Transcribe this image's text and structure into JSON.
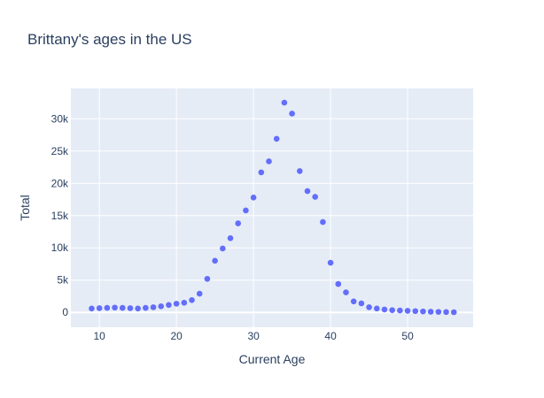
{
  "chart_data": {
    "type": "scatter",
    "title": "Brittany's ages in the US",
    "xlabel": "Current Age",
    "ylabel": "Total",
    "xlim": [
      6.3,
      58.5
    ],
    "ylim": [
      -2300,
      34700
    ],
    "x_ticks": [
      10,
      20,
      30,
      40,
      50
    ],
    "y_ticks": [
      {
        "value": 0,
        "label": "0"
      },
      {
        "value": 5000,
        "label": "5k"
      },
      {
        "value": 10000,
        "label": "10k"
      },
      {
        "value": 15000,
        "label": "15k"
      },
      {
        "value": 20000,
        "label": "20k"
      },
      {
        "value": 25000,
        "label": "25k"
      },
      {
        "value": 30000,
        "label": "30k"
      }
    ],
    "grid": true,
    "colors": {
      "plot_background": "#e5ecf6",
      "grid": "#ffffff",
      "marker": "#636efa",
      "text": "#2a3f5f"
    },
    "x": [
      9,
      10,
      11,
      12,
      13,
      14,
      15,
      16,
      17,
      18,
      19,
      20,
      21,
      22,
      23,
      24,
      25,
      26,
      27,
      28,
      29,
      30,
      31,
      32,
      33,
      34,
      35,
      36,
      37,
      38,
      39,
      40,
      41,
      42,
      43,
      44,
      45,
      46,
      47,
      48,
      49,
      50,
      51,
      52,
      53,
      54,
      55,
      56
    ],
    "y": [
      600,
      650,
      700,
      750,
      700,
      650,
      600,
      700,
      800,
      950,
      1150,
      1350,
      1500,
      1900,
      2900,
      5200,
      8000,
      9900,
      11500,
      13800,
      15800,
      17800,
      21700,
      23400,
      26900,
      32500,
      30800,
      21900,
      18800,
      17900,
      14000,
      7700,
      4400,
      3100,
      1700,
      1400,
      800,
      600,
      450,
      350,
      300,
      250,
      200,
      150,
      100,
      80,
      50,
      30
    ]
  }
}
